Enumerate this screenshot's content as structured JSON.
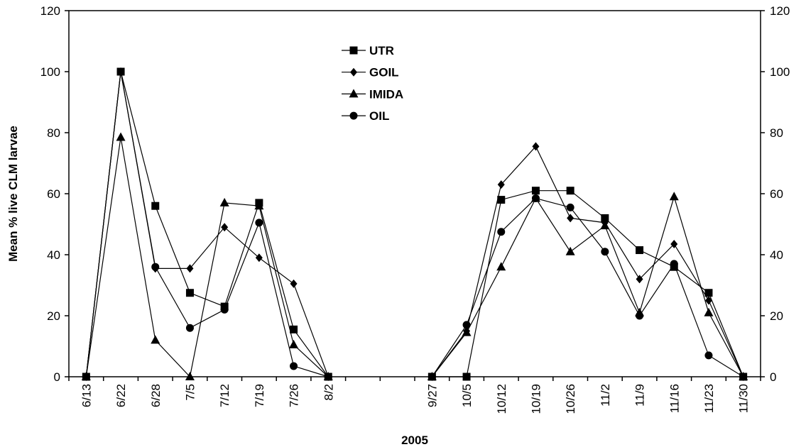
{
  "chart_data": {
    "type": "line",
    "title": "",
    "xlabel": "2005",
    "ylabel": "Mean % live CLM larvae",
    "ylim": [
      0,
      120
    ],
    "yticks": [
      "0",
      "20",
      "40",
      "60",
      "80",
      "100",
      "120"
    ],
    "y2ticks": [
      "0",
      "20",
      "40",
      "60",
      "80",
      "100",
      "120"
    ],
    "categories": [
      "6/13",
      "6/22",
      "6/28",
      "7/5",
      "7/12",
      "7/19",
      "7/26",
      "8/2",
      "",
      "",
      "9/27",
      "10/5",
      "10/12",
      "10/19",
      "10/26",
      "11/2",
      "11/9",
      "11/16",
      "11/23",
      "11/30"
    ],
    "legend_position": "top-center",
    "grid": false,
    "series": [
      {
        "name": "UTR",
        "marker": "square",
        "values": [
          0,
          100,
          56,
          27.5,
          23,
          57,
          15.5,
          0,
          null,
          null,
          0,
          0,
          58,
          61,
          61,
          52,
          41.5,
          36,
          27.5,
          0
        ]
      },
      {
        "name": "GOIL",
        "marker": "diamond",
        "values": [
          0,
          100,
          35.5,
          35.5,
          49,
          39,
          30.5,
          0,
          null,
          null,
          0,
          15,
          63,
          75.5,
          52,
          50.5,
          32,
          43.5,
          25,
          0
        ]
      },
      {
        "name": "IMIDA",
        "marker": "triangle",
        "values": [
          0,
          78.5,
          12,
          0,
          57,
          56,
          10.5,
          0,
          null,
          null,
          0,
          14.5,
          36,
          58.5,
          41,
          49.5,
          21,
          59,
          21,
          0
        ]
      },
      {
        "name": "OIL",
        "marker": "circle",
        "values": [
          0,
          100,
          36,
          16,
          22,
          50.5,
          3.5,
          0,
          null,
          null,
          0,
          17,
          47.5,
          58.5,
          55.5,
          41,
          20,
          37,
          7,
          0
        ]
      }
    ]
  }
}
